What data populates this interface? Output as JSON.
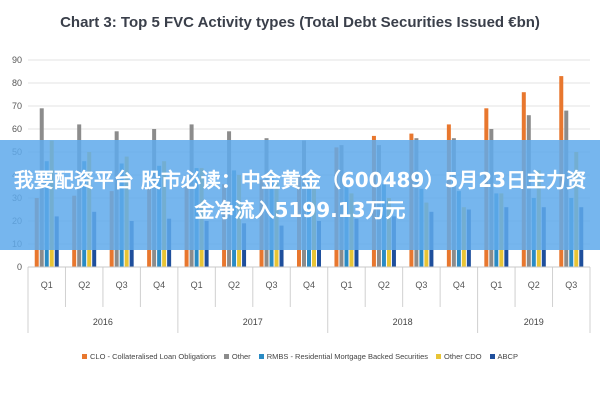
{
  "banner": {
    "headline": "我要配资平台 股市必读：中金黄金（600489）5月23日主力资金净流入5199.13万元"
  },
  "chart_data": {
    "type": "bar",
    "title": "Chart 3: Top 5 FVC Activity types (Total Debt Securities Issued €bn)",
    "xlabel": "",
    "ylabel": "",
    "ylim": [
      0,
      90
    ],
    "yticks": [
      0,
      10,
      20,
      30,
      40,
      50,
      60,
      70,
      80,
      90
    ],
    "grid": true,
    "legend_position": "bottom",
    "categories": [
      "Q1",
      "Q2",
      "Q3",
      "Q4",
      "Q1",
      "Q2",
      "Q3",
      "Q4",
      "Q1",
      "Q2",
      "Q3",
      "Q4",
      "Q1",
      "Q2",
      "Q3"
    ],
    "years": [
      {
        "label": "2016",
        "count": 4
      },
      {
        "label": "2017",
        "count": 4
      },
      {
        "label": "2018",
        "count": 4
      },
      {
        "label": "2019",
        "count": 3
      }
    ],
    "series": [
      {
        "name": "CLO - Collateralised Loan Obligations",
        "color": "#e8772e",
        "values": [
          30,
          31,
          33,
          34,
          35,
          36,
          38,
          40,
          52,
          57,
          58,
          62,
          69,
          76,
          83
        ]
      },
      {
        "name": "Other",
        "color": "#8c8c8c",
        "values": [
          69,
          62,
          59,
          60,
          62,
          59,
          56,
          55,
          53,
          53,
          56,
          56,
          60,
          66,
          68
        ]
      },
      {
        "name": "RMBS - Residential Mortgage Backed Securities",
        "color": "#2a8bc4",
        "values": [
          46,
          46,
          45,
          44,
          43,
          42,
          40,
          38,
          36,
          36,
          34,
          33,
          32,
          30,
          30
        ]
      },
      {
        "name": "Other CDO",
        "color": "#e8c435",
        "values": [
          55,
          50,
          48,
          46,
          43,
          40,
          37,
          35,
          32,
          30,
          28,
          26,
          32,
          42,
          50
        ]
      },
      {
        "name": "ABCP",
        "color": "#1f4f9c",
        "values": [
          22,
          24,
          20,
          21,
          20,
          19,
          18,
          20,
          21,
          22,
          24,
          25,
          26,
          26,
          26
        ]
      }
    ]
  }
}
